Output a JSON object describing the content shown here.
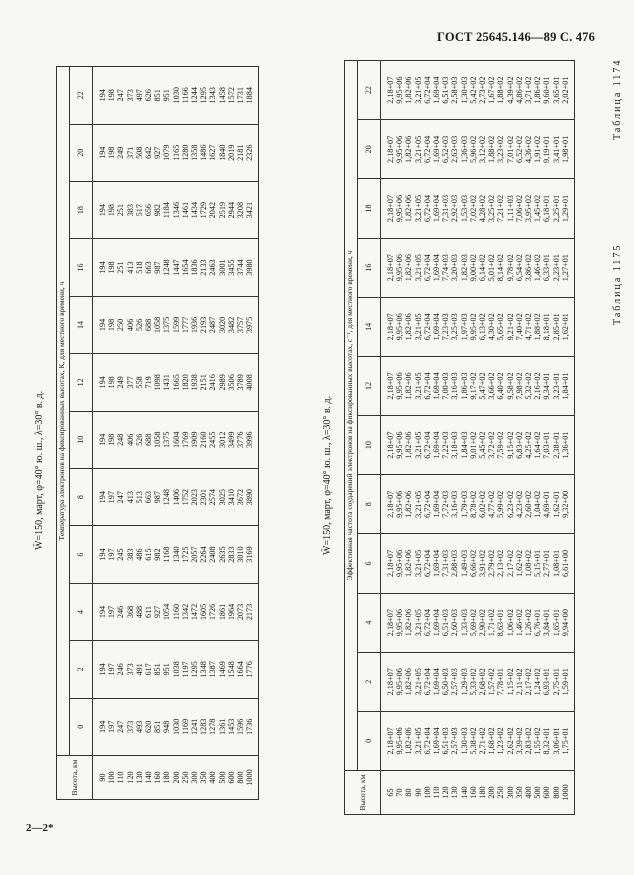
{
  "page": {
    "header": "ГОСТ 25645.146—89  С. 476",
    "footer_mark": "2—2*"
  },
  "table1174": {
    "label": "Таблица 1174",
    "subtitle": "W̄=150, март, φ=40° ю. ш., λ=30° в. д.",
    "group_header": "Температура электронов на фиксированных высотах, К, для местного времени, ч",
    "alt_header": "Высота, км",
    "hours": [
      "0",
      "2",
      "4",
      "6",
      "8",
      "10",
      "12",
      "14",
      "16",
      "18",
      "20",
      "22"
    ],
    "altitudes": [
      "90",
      "100",
      "110",
      "120",
      "130",
      "140",
      "160",
      "180",
      "200",
      "250",
      "300",
      "350",
      "400",
      "500",
      "600",
      "800",
      "1000"
    ],
    "columns": [
      [
        "194",
        "197",
        "247",
        "373",
        "493",
        "620",
        "851",
        "948",
        "1030",
        "1169",
        "1241",
        "1283",
        "1278",
        "1361",
        "1453",
        "1596",
        "1736"
      ],
      [
        "194",
        "197",
        "246",
        "373",
        "491",
        "617",
        "851",
        "951",
        "1038",
        "1197",
        "1295",
        "1348",
        "1387",
        "1469",
        "1548",
        "1664",
        "1776"
      ],
      [
        "194",
        "197",
        "246",
        "368",
        "488",
        "611",
        "927",
        "1054",
        "1160",
        "1342",
        "1472",
        "1605",
        "1726",
        "1861",
        "1964",
        "2073",
        "2173"
      ],
      [
        "194",
        "197",
        "245",
        "383",
        "486",
        "615",
        "982",
        "1168",
        "1340",
        "1725",
        "2057",
        "2264",
        "2408",
        "2635",
        "2833",
        "3010",
        "3169"
      ],
      [
        "194",
        "197",
        "247",
        "413",
        "513",
        "663",
        "987",
        "1248",
        "1406",
        "1752",
        "2023",
        "2301",
        "2574",
        "3025",
        "3410",
        "3672",
        "3890"
      ],
      [
        "194",
        "198",
        "248",
        "406",
        "526",
        "688",
        "1058",
        "1375",
        "1604",
        "1769",
        "1909",
        "2160",
        "2455",
        "3012",
        "3499",
        "3776",
        "3996"
      ],
      [
        "194",
        "198",
        "249",
        "377",
        "558",
        "719",
        "1098",
        "1431",
        "1665",
        "1820",
        "1938",
        "2151",
        "2416",
        "2989",
        "3506",
        "3789",
        "4008"
      ],
      [
        "194",
        "198",
        "250",
        "406",
        "526",
        "688",
        "1058",
        "1375",
        "1599",
        "1777",
        "1936",
        "2193",
        "2487",
        "3020",
        "3482",
        "3757",
        "3975"
      ],
      [
        "194",
        "198",
        "251",
        "413",
        "518",
        "663",
        "987",
        "1248",
        "1447",
        "1654",
        "1836",
        "2133",
        "2463",
        "3001",
        "3455",
        "3744",
        "3980"
      ],
      [
        "194",
        "198",
        "251",
        "383",
        "517",
        "656",
        "982",
        "1184",
        "1346",
        "1461",
        "1434",
        "1729",
        "2042",
        "2519",
        "2944",
        "3208",
        "3421"
      ],
      [
        "194",
        "198",
        "249",
        "371",
        "508",
        "642",
        "927",
        "1079",
        "1165",
        "1280",
        "1358",
        "1486",
        "1627",
        "1840",
        "2019",
        "2181",
        "2326"
      ],
      [
        "194",
        "198",
        "247",
        "373",
        "497",
        "626",
        "851",
        "951",
        "1030",
        "1166",
        "1244",
        "1295",
        "1343",
        "1458",
        "1572",
        "1731",
        "1884"
      ]
    ]
  },
  "table1175": {
    "label": "Таблица 1175",
    "subtitle": "W̄=150, март, φ=40° ю. ш., λ=30° в. д.",
    "group_header": "Эффективная частота соударений электронов на фиксированных высотах, с⁻¹, для местного времени, ч",
    "alt_header": "Высота, км",
    "hours": [
      "0",
      "2",
      "4",
      "6",
      "8",
      "10",
      "12",
      "14",
      "16",
      "18",
      "20",
      "22"
    ],
    "altitudes": [
      "65",
      "70",
      "80",
      "90",
      "100",
      "110",
      "120",
      "130",
      "140",
      "160",
      "180",
      "200",
      "250",
      "300",
      "350",
      "400",
      "500",
      "600",
      "800",
      "1000"
    ],
    "columns": [
      [
        "2,18+07",
        "9,95+06",
        "1,82+06",
        "3,21+05",
        "6,72+04",
        "1,69+04",
        "6,51+03",
        "2,57+03",
        "1,30+03",
        "5,38+02",
        "2,71+02",
        "1,68+02",
        "1,23+02",
        "2,62+02",
        "3,39+02",
        "2,83+02",
        "1,55+02",
        "8,32+01",
        "3,06+01",
        "1,75+01"
      ],
      [
        "2,18+07",
        "9,95+06",
        "1,82+06",
        "3,21+05",
        "6,72+04",
        "1,69+04",
        "6,50+03",
        "2,57+03",
        "1,29+03",
        "5,33+02",
        "2,68+02",
        "1,57+02",
        "7,78+01",
        "1,15+02",
        "2,11+02",
        "2,17+02",
        "1,24+02",
        "6,93+01",
        "2,75+01",
        "1,59+01"
      ],
      [
        "2,18+07",
        "9,95+06",
        "1,82+06",
        "3,21+05",
        "6,72+04",
        "1,69+04",
        "6,51+03",
        "2,60+03",
        "1,33+03",
        "5,69+02",
        "2,90+02",
        "1,71+02",
        "8,63+01",
        "1,06+02",
        "1,46+02",
        "1,26+02",
        "6,76+01",
        "3,84+01",
        "1,65+01",
        "9,94+00"
      ],
      [
        "2,18+07",
        "9,95+06",
        "1,82+06",
        "3,21+05",
        "6,72+04",
        "1,69+04",
        "7,31+03",
        "2,88+03",
        "1,49+03",
        "6,66+02",
        "3,91+02",
        "2,79+02",
        "2,13+02",
        "2,17+02",
        "1,62+02",
        "1,08+02",
        "5,15+01",
        "2,77+01",
        "1,08+01",
        "6,61+00"
      ],
      [
        "2,18+07",
        "9,95+06",
        "1,82+06",
        "3,21+05",
        "6,72+04",
        "1,69+04",
        "7,72+03",
        "3,16+03",
        "1,79+03",
        "8,78+02",
        "6,02+02",
        "4,77+02",
        "5,99+02",
        "6,23+02",
        "4,23+02",
        "2,60+02",
        "1,04+02",
        "4,69+01",
        "1,62+01",
        "9,32+00"
      ],
      [
        "2,18+07",
        "9,95+06",
        "1,82+06",
        "3,21+05",
        "6,72+04",
        "1,69+04",
        "7,22+03",
        "3,18+03",
        "1,84+03",
        "9,01+02",
        "5,45+02",
        "3,72+02",
        "7,59+02",
        "9,15+02",
        "6,83+02",
        "4,25+02",
        "1,64+02",
        "7,03+01",
        "2,38+01",
        "1,36+01"
      ],
      [
        "2,18+07",
        "9,95+06",
        "1,82+06",
        "3,21+05",
        "6,72+04",
        "1,69+04",
        "7,00+03",
        "3,16+03",
        "1,86+03",
        "9,17+02",
        "5,47+02",
        "3,66+02",
        "6,40+02",
        "9,58+02",
        "7,98+02",
        "5,32+02",
        "2,16+02",
        "9,34+01",
        "3,23+01",
        "1,84+01"
      ],
      [
        "2,18+07",
        "9,95+06",
        "1,82+06",
        "3,21+05",
        "6,72+04",
        "1,69+04",
        "7,23+03",
        "3,25+03",
        "1,97+03",
        "9,95+02",
        "6,13+02",
        "4,30+02",
        "5,65+02",
        "9,21+02",
        "7,40+02",
        "4,71+02",
        "1,88+02",
        "8,18+01",
        "2,85+01",
        "1,62+01"
      ],
      [
        "2,18+07",
        "9,95+06",
        "1,82+06",
        "3,21+05",
        "6,72+04",
        "1,69+04",
        "7,74+03",
        "3,20+03",
        "1,82+03",
        "9,00+02",
        "6,14+02",
        "5,01+02",
        "8,14+02",
        "9,78+02",
        "6,54+02",
        "3,86+02",
        "1,46+02",
        "6,33+01",
        "2,23+01",
        "1,27+01"
      ],
      [
        "2,18+07",
        "9,95+06",
        "1,82+06",
        "3,21+05",
        "6,72+04",
        "1,69+04",
        "7,31+03",
        "2,92+03",
        "1,53+03",
        "7,02+02",
        "4,28+02",
        "3,25+02",
        "7,21+02",
        "1,11+03",
        "7,06+02",
        "3,95+02",
        "1,45+02",
        "6,18+01",
        "2,25+01",
        "1,29+01"
      ],
      [
        "2,18+07",
        "9,95+06",
        "1,82+06",
        "3,21+05",
        "6,72+04",
        "1,69+04",
        "6,52+03",
        "2,63+03",
        "1,36+03",
        "5,96+02",
        "3,12+02",
        "1,88+02",
        "3,23+02",
        "7,01+02",
        "6,52+02",
        "4,36+02",
        "1,91+02",
        "9,19+01",
        "3,41+01",
        "1,98+01"
      ],
      [
        "2,18+07",
        "9,95+06",
        "1,82+06",
        "3,21+05",
        "6,72+04",
        "1,69+04",
        "6,51+03",
        "2,58+03",
        "1,30+03",
        "5,42+02",
        "2,73+02",
        "1,67+02",
        "1,88+02",
        "4,39+02",
        "4,86+02",
        "3,71+02",
        "1,86+02",
        "9,60+01",
        "3,65+01",
        "2,02+01"
      ]
    ]
  }
}
